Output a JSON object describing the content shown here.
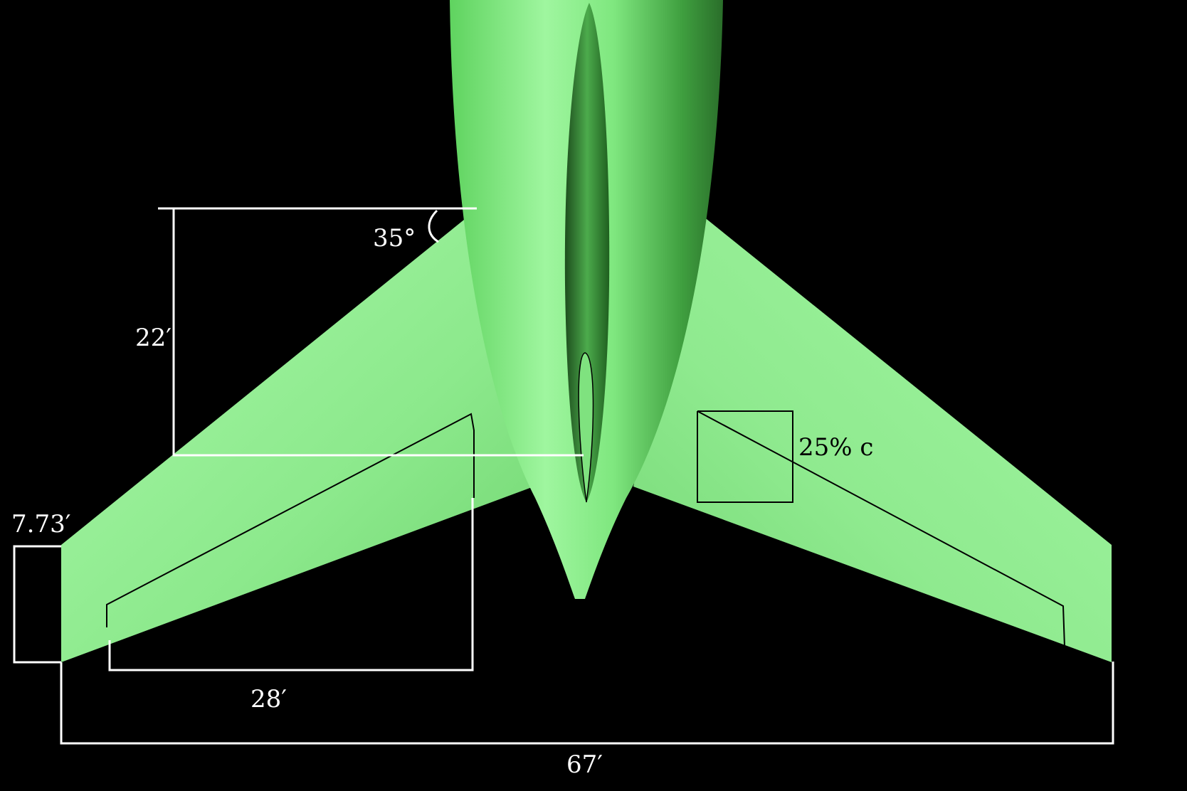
{
  "colors": {
    "background": "#000000",
    "aircraft": "#8ef08e",
    "aircraft_shadow": "#2f7f2f",
    "dimension_lines": "#ffffff",
    "control_surfaces": "#000000"
  },
  "dimensions": {
    "sweep_angle": "35°",
    "root_length": "22′",
    "tip_chord": "7.73′",
    "aileron_span": "28′",
    "chord_fraction": "25% c",
    "total_span": "67′"
  }
}
